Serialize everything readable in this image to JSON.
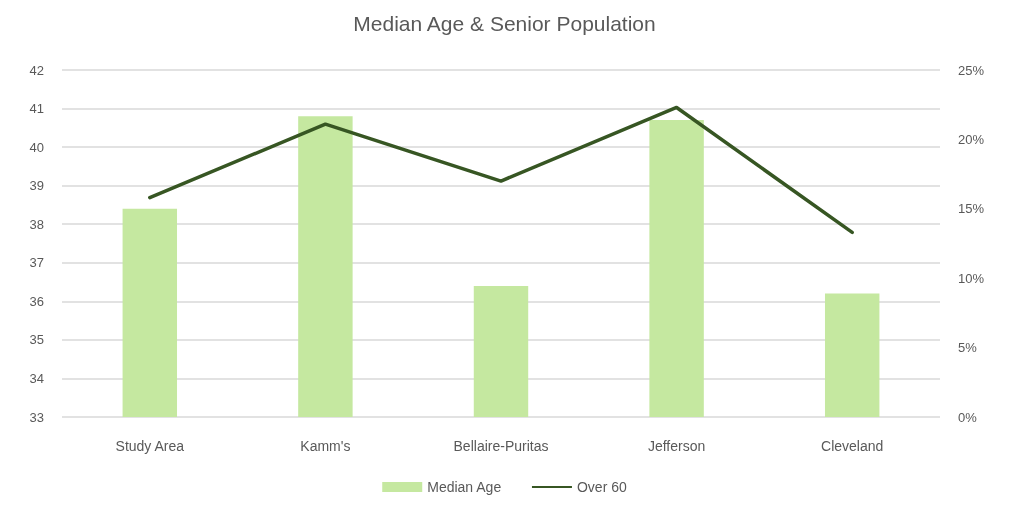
{
  "chart_data": {
    "type": "bar",
    "title": "Median Age & Senior Population",
    "categories": [
      "Study Area",
      "Kamm's",
      "Bellaire-Puritas",
      "Jefferson",
      "Cleveland"
    ],
    "series": [
      {
        "name": "Median Age",
        "color": "#c5e8a0",
        "values": [
          38.4,
          40.8,
          36.4,
          40.7,
          36.2
        ]
      },
      {
        "name": "Over 60",
        "type": "line",
        "axis": "y2",
        "color": "#375623",
        "values": [
          15.8,
          21.1,
          17.0,
          22.3,
          13.3
        ]
      }
    ],
    "ylim": [
      33,
      42
    ],
    "yticks": [
      33,
      34,
      35,
      36,
      37,
      38,
      39,
      40,
      41,
      42
    ],
    "y2lim": [
      0,
      25
    ],
    "y2ticks": [
      {
        "value": 0,
        "label": "0%"
      },
      {
        "value": 5,
        "label": "5%"
      },
      {
        "value": 10,
        "label": "10%"
      },
      {
        "value": 15,
        "label": "15%"
      },
      {
        "value": 20,
        "label": "20%"
      },
      {
        "value": 25,
        "label": "25%"
      }
    ],
    "grid": "y",
    "legend": "bottom",
    "marker": "none"
  }
}
